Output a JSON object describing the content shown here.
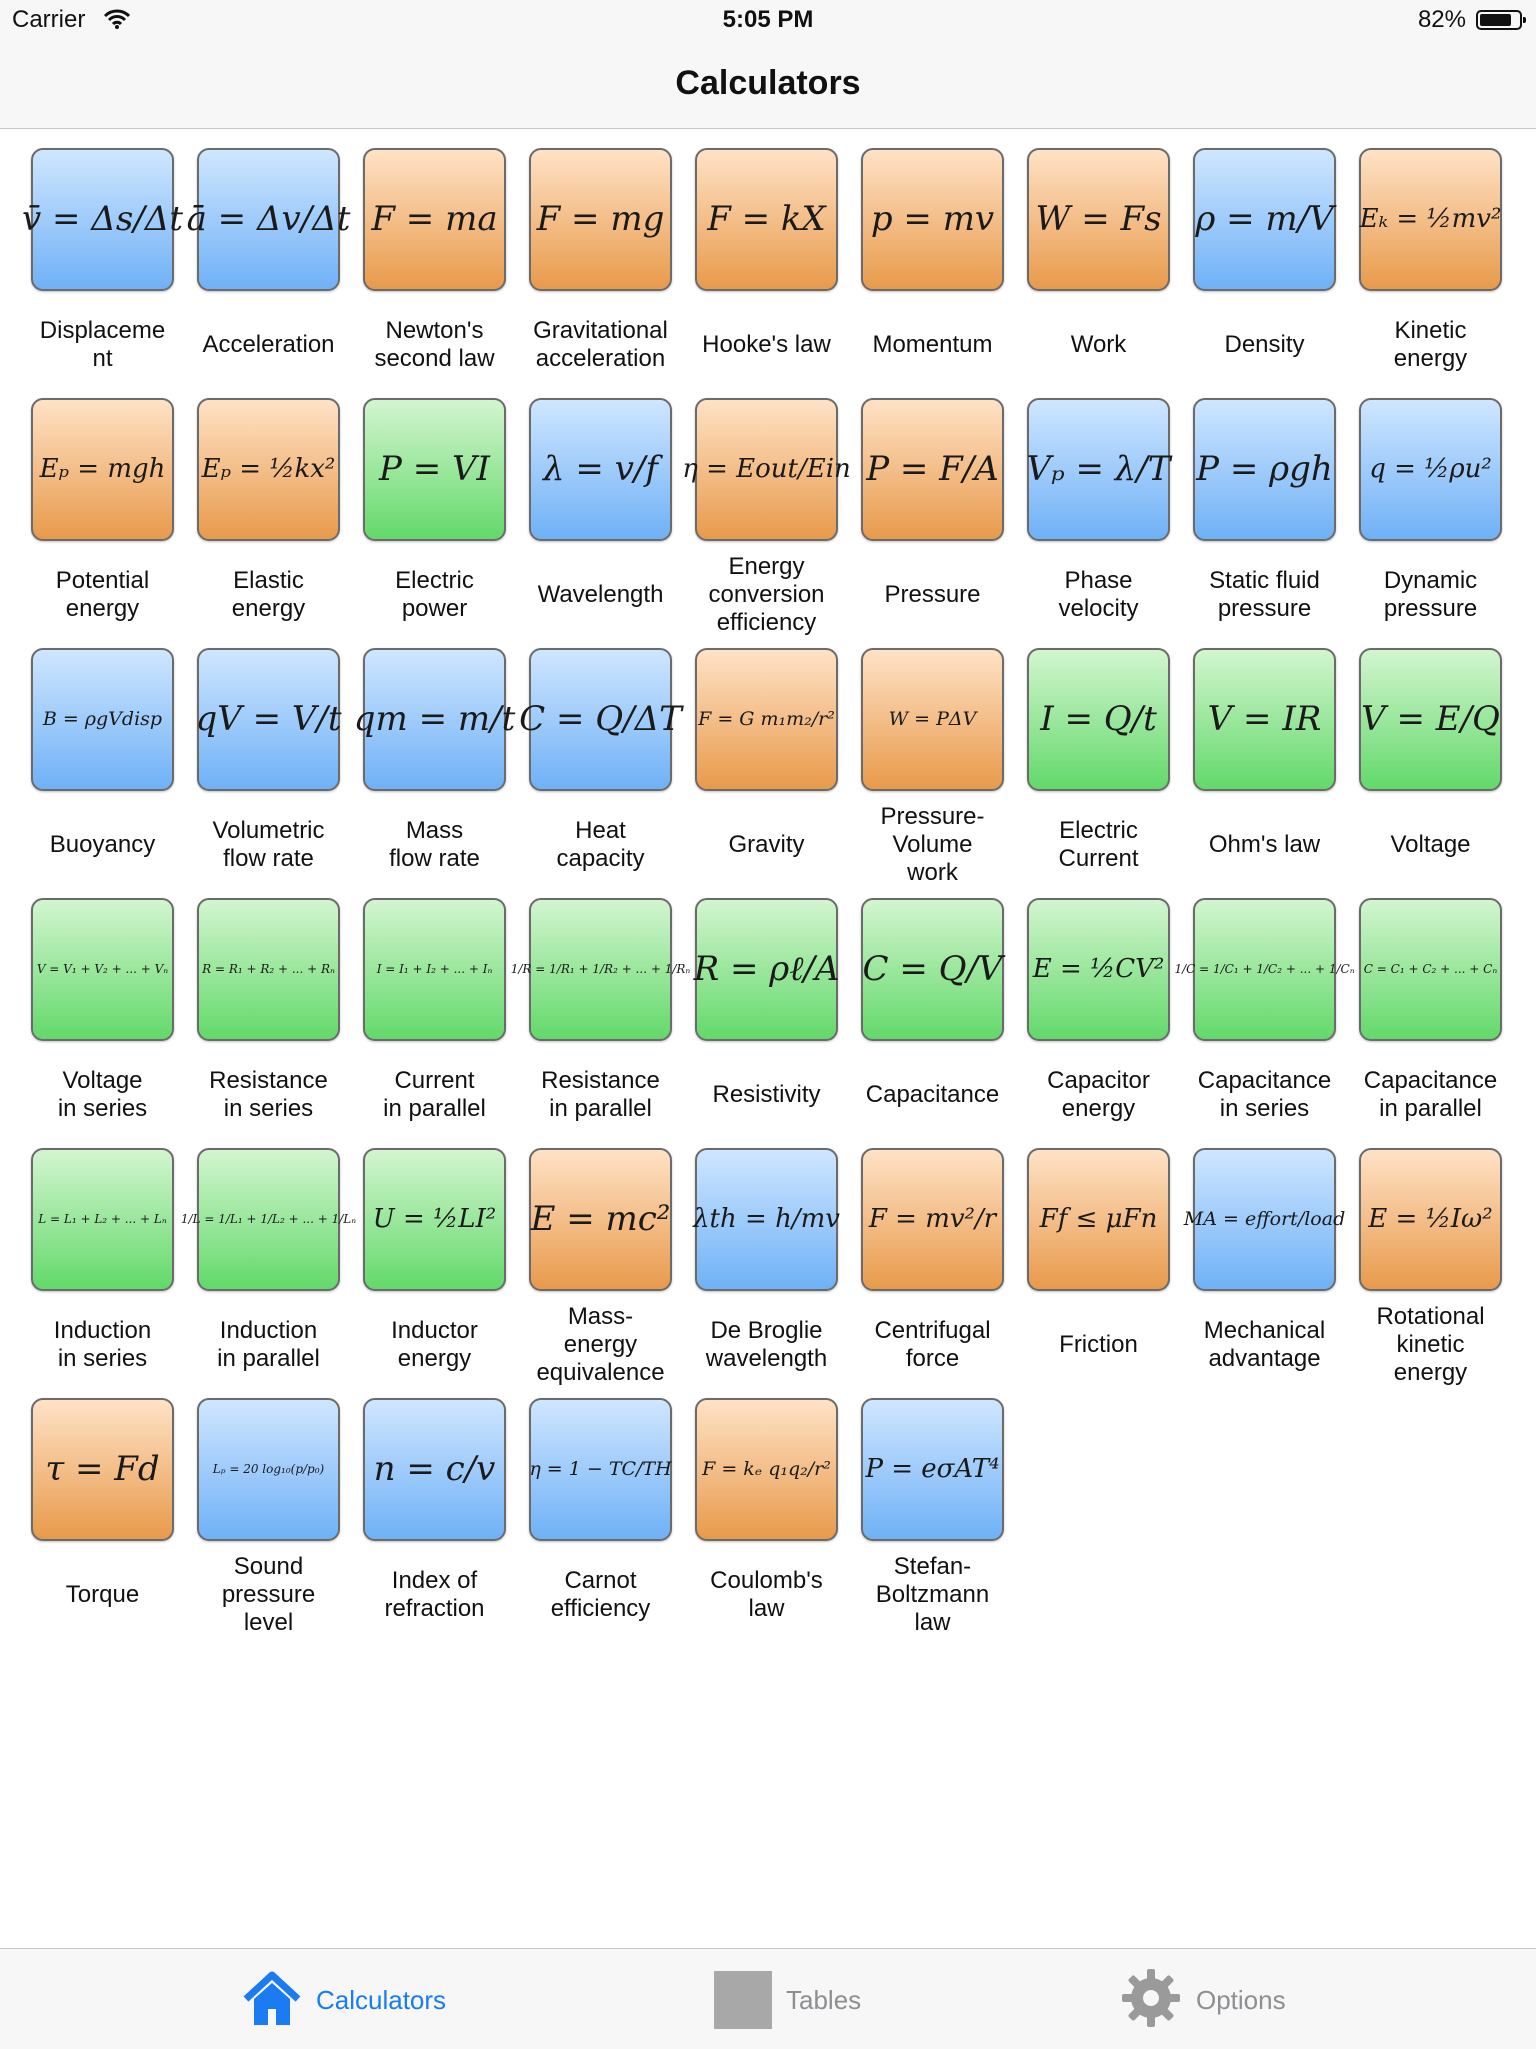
{
  "status": {
    "carrier": "Carrier",
    "time": "5:05 PM",
    "battery": "82%"
  },
  "nav": {
    "title": "Calculators"
  },
  "colors": {
    "blue": "#6fb1f6",
    "orange": "#e89a4b",
    "green": "#63d96a",
    "accent": "#1a7cf0"
  },
  "calculators": [
    {
      "label": "Displaceme\nnt",
      "formula": "v̄ = Δs/Δt",
      "color": "blue",
      "size": "l"
    },
    {
      "label": "Acceleration",
      "formula": "ā = Δv/Δt",
      "color": "blue",
      "size": "l"
    },
    {
      "label": "Newton's\nsecond law",
      "formula": "F = ma",
      "color": "orange",
      "size": "l"
    },
    {
      "label": "Gravitational\nacceleration",
      "formula": "F = mg",
      "color": "orange",
      "size": "l"
    },
    {
      "label": "Hooke's law",
      "formula": "F = kX",
      "color": "orange",
      "size": "l"
    },
    {
      "label": "Momentum",
      "formula": "p = mv",
      "color": "orange",
      "size": "l"
    },
    {
      "label": "Work",
      "formula": "W = Fs",
      "color": "orange",
      "size": "l"
    },
    {
      "label": "Density",
      "formula": "ρ = m/V",
      "color": "blue",
      "size": "l"
    },
    {
      "label": "Kinetic\nenergy",
      "formula": "Eₖ = ½mv²",
      "color": "orange",
      "size": "m"
    },
    {
      "label": "Potential\nenergy",
      "formula": "Eₚ = mgh",
      "color": "orange",
      "size": "m"
    },
    {
      "label": "Elastic\nenergy",
      "formula": "Eₚ = ½kx²",
      "color": "orange",
      "size": "m"
    },
    {
      "label": "Electric\npower",
      "formula": "P = VI",
      "color": "green",
      "size": "l"
    },
    {
      "label": "Wavelength",
      "formula": "λ = v/f",
      "color": "blue",
      "size": "l"
    },
    {
      "label": "Energy\nconversion\nefficiency",
      "formula": "η = Eout/Ein",
      "color": "orange",
      "size": "m"
    },
    {
      "label": "Pressure",
      "formula": "P = F/A",
      "color": "orange",
      "size": "l"
    },
    {
      "label": "Phase\nvelocity",
      "formula": "Vₚ = λ/T",
      "color": "blue",
      "size": "l"
    },
    {
      "label": "Static fluid\npressure",
      "formula": "P = ρgh",
      "color": "blue",
      "size": "l"
    },
    {
      "label": "Dynamic\npressure",
      "formula": "q = ½ρu²",
      "color": "blue",
      "size": "m"
    },
    {
      "label": "Buoyancy",
      "formula": "B = ρgVdisp",
      "color": "blue",
      "size": "s"
    },
    {
      "label": "Volumetric\nflow rate",
      "formula": "qV = V/t",
      "color": "blue",
      "size": "l"
    },
    {
      "label": "Mass\nflow rate",
      "formula": "qm = m/t",
      "color": "blue",
      "size": "l"
    },
    {
      "label": "Heat\ncapacity",
      "formula": "C = Q/ΔT",
      "color": "blue",
      "size": "l"
    },
    {
      "label": "Gravity",
      "formula": "F = G m₁m₂/r²",
      "color": "orange",
      "size": "s"
    },
    {
      "label": "Pressure-\nVolume\nwork",
      "formula": "W = PΔV",
      "color": "orange",
      "size": "s"
    },
    {
      "label": "Electric\nCurrent",
      "formula": "I = Q/t",
      "color": "green",
      "size": "l"
    },
    {
      "label": "Ohm's law",
      "formula": "V = IR",
      "color": "green",
      "size": "l"
    },
    {
      "label": "Voltage",
      "formula": "V = E/Q",
      "color": "green",
      "size": "l"
    },
    {
      "label": "Voltage\nin series",
      "formula": "V = V₁ + V₂ + ... + Vₙ",
      "color": "green",
      "size": "xs"
    },
    {
      "label": "Resistance\nin series",
      "formula": "R = R₁ + R₂ + ... + Rₙ",
      "color": "green",
      "size": "xs"
    },
    {
      "label": "Current\nin parallel",
      "formula": "I = I₁ + I₂ + ... + Iₙ",
      "color": "green",
      "size": "xs"
    },
    {
      "label": "Resistance\nin parallel",
      "formula": "1/R = 1/R₁ + 1/R₂ + ... + 1/Rₙ",
      "color": "green",
      "size": "xs"
    },
    {
      "label": "Resistivity",
      "formula": "R = ρℓ/A",
      "color": "green",
      "size": "l"
    },
    {
      "label": "Capacitance",
      "formula": "C = Q/V",
      "color": "green",
      "size": "l"
    },
    {
      "label": "Capacitor\nenergy",
      "formula": "E = ½CV²",
      "color": "green",
      "size": "m"
    },
    {
      "label": "Capacitance\nin series",
      "formula": "1/C = 1/C₁ + 1/C₂ + ... + 1/Cₙ",
      "color": "green",
      "size": "xs"
    },
    {
      "label": "Capacitance\nin parallel",
      "formula": "C = C₁ + C₂ + ... + Cₙ",
      "color": "green",
      "size": "xs"
    },
    {
      "label": "Induction\nin series",
      "formula": "L = L₁ + L₂ + ... + Lₙ",
      "color": "green",
      "size": "xs"
    },
    {
      "label": "Induction\nin parallel",
      "formula": "1/L = 1/L₁ + 1/L₂ + ... + 1/Lₙ",
      "color": "green",
      "size": "xs"
    },
    {
      "label": "Inductor\nenergy",
      "formula": "U = ½LI²",
      "color": "green",
      "size": "m"
    },
    {
      "label": "Mass-\nenergy\nequivalence",
      "formula": "E = mc²",
      "color": "orange",
      "size": "l"
    },
    {
      "label": "De Broglie\nwavelength",
      "formula": "λth = h/mv",
      "color": "blue",
      "size": "m"
    },
    {
      "label": "Centrifugal\nforce",
      "formula": "F = mv²/r",
      "color": "orange",
      "size": "m"
    },
    {
      "label": "Friction",
      "formula": "Ff ≤ μFn",
      "color": "orange",
      "size": "m"
    },
    {
      "label": "Mechanical\nadvantage",
      "formula": "MA = effort/load",
      "color": "blue",
      "size": "s"
    },
    {
      "label": "Rotational\nkinetic\nenergy",
      "formula": "E = ½Iω²",
      "color": "orange",
      "size": "m"
    },
    {
      "label": "Torque",
      "formula": "τ = Fd",
      "color": "orange",
      "size": "l"
    },
    {
      "label": "Sound\npressure\nlevel",
      "formula": "Lₚ = 20 log₁₀(p/p₀)",
      "color": "blue",
      "size": "xs"
    },
    {
      "label": "Index of\nrefraction",
      "formula": "n = c/v",
      "color": "blue",
      "size": "l"
    },
    {
      "label": "Carnot\nefficiency",
      "formula": "η = 1 − TC/TH",
      "color": "blue",
      "size": "s"
    },
    {
      "label": "Coulomb's\nlaw",
      "formula": "F = kₑ q₁q₂/r²",
      "color": "orange",
      "size": "s"
    },
    {
      "label": "Stefan-\nBoltzmann\nlaw",
      "formula": "P = eσAT⁴",
      "color": "blue",
      "size": "m"
    }
  ],
  "tabs": [
    {
      "label": "Calculators",
      "icon": "home-icon",
      "active": true
    },
    {
      "label": "Tables",
      "icon": "square-icon",
      "active": false
    },
    {
      "label": "Options",
      "icon": "gear-icon",
      "active": false
    }
  ]
}
